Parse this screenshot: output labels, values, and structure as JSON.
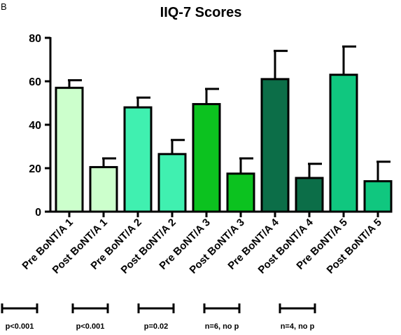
{
  "panel_label": "B",
  "chart_data": {
    "type": "bar",
    "title": "IIQ-7 Scores",
    "xlabel": "",
    "ylabel": "",
    "ylim": [
      0,
      80
    ],
    "yticks": [
      0,
      20,
      40,
      60,
      80
    ],
    "grid": false,
    "categories": [
      "Pre BoNT/A 1",
      "Post BoNT/A 1",
      "Pre BoNT/A 2",
      "Post BoNT/A 2",
      "Pre BoNT/A 3",
      "Post BoNT/A 3",
      "Pre BoNT/A 4",
      "Post BoNT/A 4",
      "Pre BoNT/A 5",
      "Post BoNT/A 5"
    ],
    "values": [
      57,
      20.5,
      48,
      26.5,
      49.5,
      17.5,
      61,
      15.5,
      63,
      14
    ],
    "errors": [
      3.5,
      4,
      4.5,
      6.5,
      7,
      7,
      13,
      6.5,
      13,
      9
    ],
    "colors": [
      "#ccffcc",
      "#ccffcc",
      "#40f0b0",
      "#40f0b0",
      "#0cc21f",
      "#0cc21f",
      "#0c6e48",
      "#0c6e48",
      "#10c77f",
      "#10c77f"
    ],
    "comparisons": [
      {
        "bar_pair": [
          0,
          1
        ],
        "label": "p<0.001"
      },
      {
        "bar_pair": [
          2,
          3
        ],
        "label": "p<0.001"
      },
      {
        "bar_pair": [
          4,
          5
        ],
        "label": "p=0.02"
      },
      {
        "bar_pair": [
          6,
          7
        ],
        "label": "n=6, no p"
      },
      {
        "bar_pair": [
          8,
          9
        ],
        "label": "n=4, no p"
      }
    ]
  }
}
